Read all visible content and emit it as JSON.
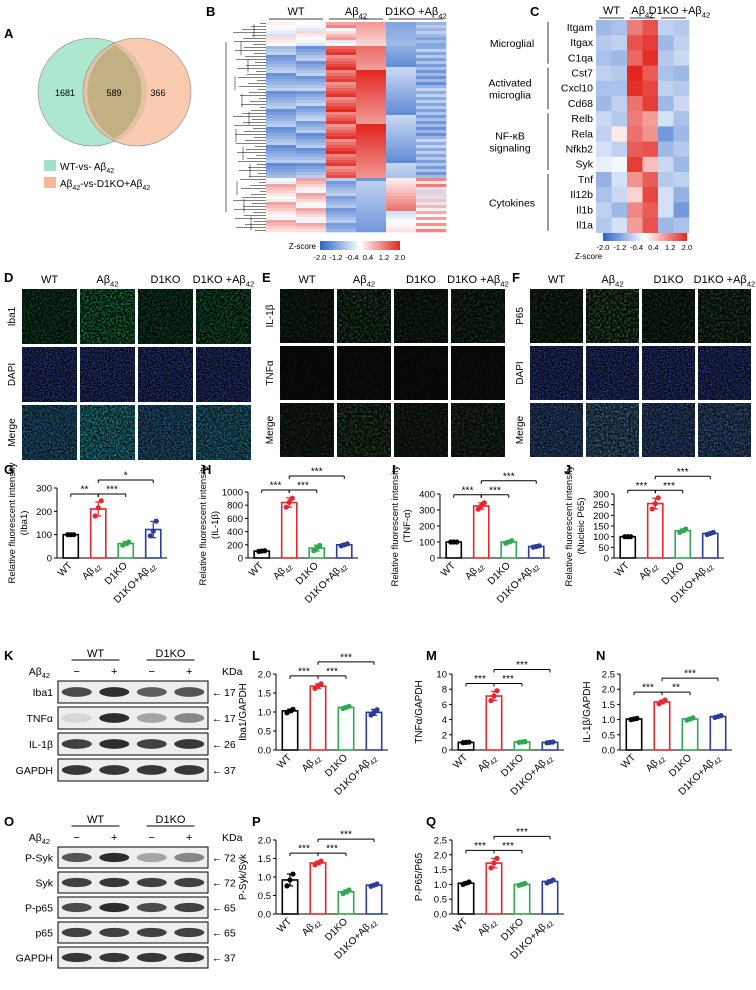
{
  "labels": {
    "A": "A",
    "B": "B",
    "C": "C",
    "D": "D",
    "E": "E",
    "F": "F",
    "G": "G",
    "H": "H",
    "I": "I",
    "J": "J",
    "K": "K",
    "L": "L",
    "M": "M",
    "N": "N",
    "O": "O",
    "P": "P",
    "Q": "Q"
  },
  "venn": {
    "left_only": "1681",
    "overlap": "589",
    "right_only": "366",
    "legend_wt": "WT-vs- Aβ",
    "legend_wt_sub": "42",
    "legend_ab": "Aβ",
    "legend_ab_sub": "42",
    "legend_ab_tail": "-vs-D1KO+Aβ",
    "legend_ab_sub2": "42",
    "color_left": "#9fe3c6",
    "color_right": "#f6b896"
  },
  "heatmap_b": {
    "groups": [
      "WT",
      "Aβ42",
      "D1KO +Aβ42"
    ],
    "scale_title": "Z-score",
    "scale_ticks": [
      "-2.0",
      "-1.2",
      "-0.4",
      "0.4",
      "1.2",
      "2.0"
    ]
  },
  "heatmap_c": {
    "groups": [
      "WT",
      "Aβ42",
      "D1KO +Aβ42"
    ],
    "categories": [
      {
        "name": "Microglial",
        "genes": [
          "Itgam",
          "Itgax",
          "C1qa"
        ]
      },
      {
        "name": "Activated microglia",
        "line1": "Activated",
        "line2": "microglia",
        "genes": [
          "Cst7",
          "Cxcl10",
          "Cd68"
        ]
      },
      {
        "name": "NF-κB signaling",
        "line1": "NF-κB",
        "line2": "signaling",
        "genes": [
          "Relb",
          "Rela",
          "Nfkb2",
          "Syk"
        ]
      },
      {
        "name": "Cytokines",
        "genes": [
          "Tnf",
          "Il12b",
          "Il1b",
          "Il1a"
        ]
      }
    ],
    "values": [
      [
        -0.9,
        -0.8,
        1.2,
        1.6,
        -0.6,
        -0.7
      ],
      [
        -0.7,
        -0.6,
        1.6,
        1.8,
        -0.9,
        -0.6
      ],
      [
        -0.8,
        -0.9,
        1.4,
        1.9,
        -0.7,
        -0.5
      ],
      [
        -0.6,
        -0.7,
        2.0,
        1.5,
        -0.8,
        -0.9
      ],
      [
        -0.8,
        -0.8,
        1.9,
        1.7,
        -0.6,
        -0.7
      ],
      [
        -0.9,
        -0.6,
        1.3,
        1.8,
        -0.9,
        -0.5
      ],
      [
        -0.5,
        -0.7,
        1.2,
        0.9,
        -0.4,
        -0.8
      ],
      [
        -0.6,
        0.2,
        1.3,
        1.0,
        -1.3,
        -0.9
      ],
      [
        -0.4,
        -0.6,
        1.5,
        1.6,
        -0.9,
        -0.7
      ],
      [
        -0.2,
        -0.1,
        1.8,
        0.6,
        -0.5,
        -0.9
      ],
      [
        -1.0,
        -0.4,
        1.0,
        1.5,
        -0.7,
        -0.6
      ],
      [
        -0.8,
        -0.5,
        0.4,
        1.7,
        -0.4,
        -1.0
      ],
      [
        -0.6,
        -0.9,
        1.1,
        1.5,
        -0.4,
        -1.3
      ],
      [
        -0.7,
        -0.4,
        0.9,
        1.6,
        -0.9,
        -0.8
      ]
    ],
    "scale_title": "Z-score",
    "scale_ticks": [
      "-2.0",
      "-1.2",
      "-0.4",
      "0.4",
      "1.2",
      "2.0"
    ]
  },
  "micro": {
    "columns4": [
      "WT",
      "Aβ42",
      "D1KO",
      "D1KO +Aβ42"
    ],
    "d_rows": [
      "Iba1",
      "DAPI",
      "Merge"
    ],
    "e_rows": [
      "IL-1β",
      "TNFα",
      "Merge"
    ],
    "f_rows": [
      "P65",
      "DAPI",
      "Merge"
    ]
  },
  "blot_k": {
    "genotypes": [
      "WT",
      "D1KO"
    ],
    "treatment": "Aβ42",
    "signs": [
      "−",
      "+",
      "−",
      "+"
    ],
    "kda_label": "KDa",
    "rows": [
      {
        "name": "Iba1",
        "kda": "17"
      },
      {
        "name": "TNFα",
        "kda": "17"
      },
      {
        "name": "IL-1β",
        "kda": "26"
      },
      {
        "name": "GAPDH",
        "kda": "37"
      }
    ]
  },
  "blot_o": {
    "genotypes": [
      "WT",
      "D1KO"
    ],
    "treatment": "Aβ42",
    "signs": [
      "−",
      "+",
      "−",
      "+"
    ],
    "kda_label": "KDa",
    "rows": [
      {
        "name": "P-Syk",
        "kda": "72"
      },
      {
        "name": "Syk",
        "kda": "72"
      },
      {
        "name": "P-p65",
        "kda": "65"
      },
      {
        "name": "p65",
        "kda": "65"
      },
      {
        "name": "GAPDH",
        "kda": "37"
      }
    ]
  },
  "chart_data": [
    {
      "id": "G",
      "type": "bar",
      "ylabel": "Relative fluorescent intensity",
      "ylabel2": "(Iba1)",
      "categories": [
        "WT",
        "Aβ42",
        "D1KO",
        "D1KO+Aβ42"
      ],
      "values": [
        100,
        210,
        62,
        122
      ],
      "errors": [
        2,
        30,
        8,
        35
      ],
      "points": [
        [
          100,
          100,
          100
        ],
        [
          180,
          215,
          245
        ],
        [
          55,
          62,
          68
        ],
        [
          95,
          115,
          158
        ]
      ],
      "ylim": [
        0,
        300
      ],
      "yticks": [
        "0",
        "100",
        "200",
        "300"
      ],
      "sig": [
        {
          "label": "**",
          "a": 0,
          "b": 1,
          "level": 0
        },
        {
          "label": "***",
          "a": 1,
          "b": 2,
          "level": 0
        },
        {
          "label": "*",
          "a": 1,
          "b": 3,
          "level": 1
        }
      ]
    },
    {
      "id": "H",
      "type": "bar",
      "ylabel": "Relative fluorescent intensity",
      "ylabel2": "(IL-1β)",
      "categories": [
        "WT",
        "Aβ42",
        "D1KO",
        "D1KO+Aβ42"
      ],
      "values": [
        105,
        840,
        150,
        200
      ],
      "errors": [
        4,
        70,
        45,
        18
      ],
      "points": [
        [
          100,
          105,
          110
        ],
        [
          770,
          845,
          905
        ],
        [
          110,
          150,
          190
        ],
        [
          185,
          200,
          215
        ]
      ],
      "ylim": [
        0,
        1000
      ],
      "yticks": [
        "0",
        "200",
        "400",
        "600",
        "800",
        "1000"
      ],
      "sig": [
        {
          "label": "***",
          "a": 0,
          "b": 1,
          "level": 0
        },
        {
          "label": "***",
          "a": 1,
          "b": 2,
          "level": 0
        },
        {
          "label": "***",
          "a": 1,
          "b": 3,
          "level": 1
        }
      ]
    },
    {
      "id": "I",
      "type": "bar",
      "ylabel": "Relative fluorescent intensity",
      "ylabel2": "(TNF-α)",
      "categories": [
        "WT",
        "Aβ42",
        "D1KO",
        "D1KO+Aβ42"
      ],
      "values": [
        100,
        325,
        100,
        72
      ],
      "errors": [
        2,
        20,
        8,
        4
      ],
      "points": [
        [
          100,
          100,
          100
        ],
        [
          305,
          325,
          345
        ],
        [
          92,
          100,
          108
        ],
        [
          68,
          72,
          76
        ]
      ],
      "ylim": [
        0,
        400
      ],
      "yticks": [
        "0",
        "100",
        "200",
        "300",
        "400"
      ],
      "sig": [
        {
          "label": "***",
          "a": 0,
          "b": 1,
          "level": 0
        },
        {
          "label": "***",
          "a": 1,
          "b": 2,
          "level": 0
        },
        {
          "label": "***",
          "a": 1,
          "b": 3,
          "level": 1
        }
      ]
    },
    {
      "id": "J",
      "type": "bar",
      "ylabel": "Relative fluorescent intensity",
      "ylabel2": "(Nucleic P65)",
      "categories": [
        "WT",
        "Aβ42",
        "D1KO",
        "D1KO+Aβ42"
      ],
      "values": [
        100,
        255,
        128,
        115
      ],
      "errors": [
        2,
        25,
        8,
        5
      ],
      "points": [
        [
          100,
          100,
          100
        ],
        [
          230,
          255,
          282
        ],
        [
          120,
          128,
          136
        ],
        [
          110,
          115,
          120
        ]
      ],
      "ylim": [
        0,
        300
      ],
      "yticks": [
        "0",
        "50",
        "100",
        "150",
        "200",
        "250",
        "300"
      ],
      "sig": [
        {
          "label": "***",
          "a": 0,
          "b": 1,
          "level": 0
        },
        {
          "label": "***",
          "a": 1,
          "b": 2,
          "level": 0
        },
        {
          "label": "***",
          "a": 1,
          "b": 3,
          "level": 1
        }
      ]
    },
    {
      "id": "L",
      "type": "bar",
      "ylabel": "Iba1/GAPDH",
      "ylabel2": "",
      "categories": [
        "WT",
        "Aβ42",
        "D1KO",
        "D1KO+Aβ42"
      ],
      "values": [
        1.03,
        1.68,
        1.12,
        0.99
      ],
      "errors": [
        0.04,
        0.06,
        0.03,
        0.08
      ],
      "points": [
        [
          0.98,
          1.03,
          1.07
        ],
        [
          1.62,
          1.68,
          1.74
        ],
        [
          1.09,
          1.12,
          1.15
        ],
        [
          0.92,
          0.99,
          1.06
        ]
      ],
      "ylim": [
        0,
        2.0
      ],
      "yticks": [
        "0.0",
        "0.5",
        "1.0",
        "1.5",
        "2.0"
      ],
      "sig": [
        {
          "label": "***",
          "a": 0,
          "b": 1,
          "level": 0
        },
        {
          "label": "***",
          "a": 1,
          "b": 2,
          "level": 0
        },
        {
          "label": "***",
          "a": 1,
          "b": 3,
          "level": 1
        }
      ]
    },
    {
      "id": "M",
      "type": "bar",
      "ylabel": "TNFα/GAPDH",
      "ylabel2": "",
      "categories": [
        "WT",
        "Aβ42",
        "D1KO",
        "D1KO+Aβ42"
      ],
      "values": [
        1.0,
        7.1,
        1.05,
        1.0
      ],
      "errors": [
        0.05,
        0.6,
        0.06,
        0.06
      ],
      "points": [
        [
          0.97,
          1.0,
          1.03
        ],
        [
          6.5,
          7.1,
          7.8
        ],
        [
          1.0,
          1.05,
          1.1
        ],
        [
          0.95,
          1.0,
          1.05
        ]
      ],
      "ylim": [
        0,
        10
      ],
      "yticks": [
        "0",
        "2",
        "4",
        "6",
        "8",
        "10"
      ],
      "sig": [
        {
          "label": "***",
          "a": 0,
          "b": 1,
          "level": 0
        },
        {
          "label": "***",
          "a": 1,
          "b": 2,
          "level": 0
        },
        {
          "label": "***",
          "a": 1,
          "b": 3,
          "level": 1
        }
      ]
    },
    {
      "id": "N",
      "type": "bar",
      "ylabel": "IL-1β/GAPDH",
      "ylabel2": "",
      "categories": [
        "WT",
        "Aβ42",
        "D1KO",
        "D1KO+Aβ42"
      ],
      "values": [
        1.02,
        1.58,
        1.02,
        1.1
      ],
      "errors": [
        0.02,
        0.06,
        0.04,
        0.03
      ],
      "points": [
        [
          1.0,
          1.02,
          1.04
        ],
        [
          1.52,
          1.58,
          1.64
        ],
        [
          0.98,
          1.02,
          1.06
        ],
        [
          1.07,
          1.1,
          1.13
        ]
      ],
      "ylim": [
        0,
        2.5
      ],
      "yticks": [
        "0.0",
        "0.5",
        "1.0",
        "1.5",
        "2.0",
        "2.5"
      ],
      "sig": [
        {
          "label": "***",
          "a": 0,
          "b": 1,
          "level": 0
        },
        {
          "label": "**",
          "a": 1,
          "b": 2,
          "level": 0
        },
        {
          "label": "***",
          "a": 1,
          "b": 3,
          "level": 1
        }
      ]
    },
    {
      "id": "P",
      "type": "bar",
      "ylabel": "P-Syk/Syk",
      "ylabel2": "",
      "categories": [
        "WT",
        "Aβ42",
        "D1KO",
        "D1KO+Aβ42"
      ],
      "values": [
        0.92,
        1.38,
        0.6,
        0.78
      ],
      "errors": [
        0.16,
        0.05,
        0.05,
        0.03
      ],
      "points": [
        [
          0.76,
          0.92,
          1.08
        ],
        [
          1.33,
          1.38,
          1.43
        ],
        [
          0.55,
          0.6,
          0.65
        ],
        [
          0.75,
          0.78,
          0.81
        ]
      ],
      "ylim": [
        0,
        2.0
      ],
      "yticks": [
        "0.0",
        "0.5",
        "1.0",
        "1.5",
        "2.0"
      ],
      "sig": [
        {
          "label": "***",
          "a": 0,
          "b": 1,
          "level": 0
        },
        {
          "label": "***",
          "a": 1,
          "b": 2,
          "level": 0
        },
        {
          "label": "***",
          "a": 1,
          "b": 3,
          "level": 1
        }
      ]
    },
    {
      "id": "Q",
      "type": "bar",
      "ylabel": "P-P65/P65",
      "ylabel2": "",
      "categories": [
        "WT",
        "Aβ42",
        "D1KO",
        "D1KO+Aβ42"
      ],
      "values": [
        1.04,
        1.72,
        1.0,
        1.1
      ],
      "errors": [
        0.04,
        0.16,
        0.03,
        0.05
      ],
      "points": [
        [
          1.0,
          1.04,
          1.08
        ],
        [
          1.56,
          1.72,
          1.88
        ],
        [
          0.97,
          1.0,
          1.03
        ],
        [
          1.05,
          1.1,
          1.15
        ]
      ],
      "ylim": [
        0,
        2.5
      ],
      "yticks": [
        "0.0",
        "0.5",
        "1.0",
        "1.5",
        "2.0",
        "2.5"
      ],
      "sig": [
        {
          "label": "***",
          "a": 0,
          "b": 1,
          "level": 0
        },
        {
          "label": "***",
          "a": 1,
          "b": 2,
          "level": 0
        },
        {
          "label": "***",
          "a": 1,
          "b": 3,
          "level": 1
        }
      ]
    }
  ],
  "colors": {
    "wt": "#000000",
    "ab": "#e8262b",
    "d1ko": "#2fa84f",
    "d1koab": "#2b3c9c",
    "neg": "#2a64c8",
    "pos": "#e2261f",
    "mid": "#ffffff"
  }
}
